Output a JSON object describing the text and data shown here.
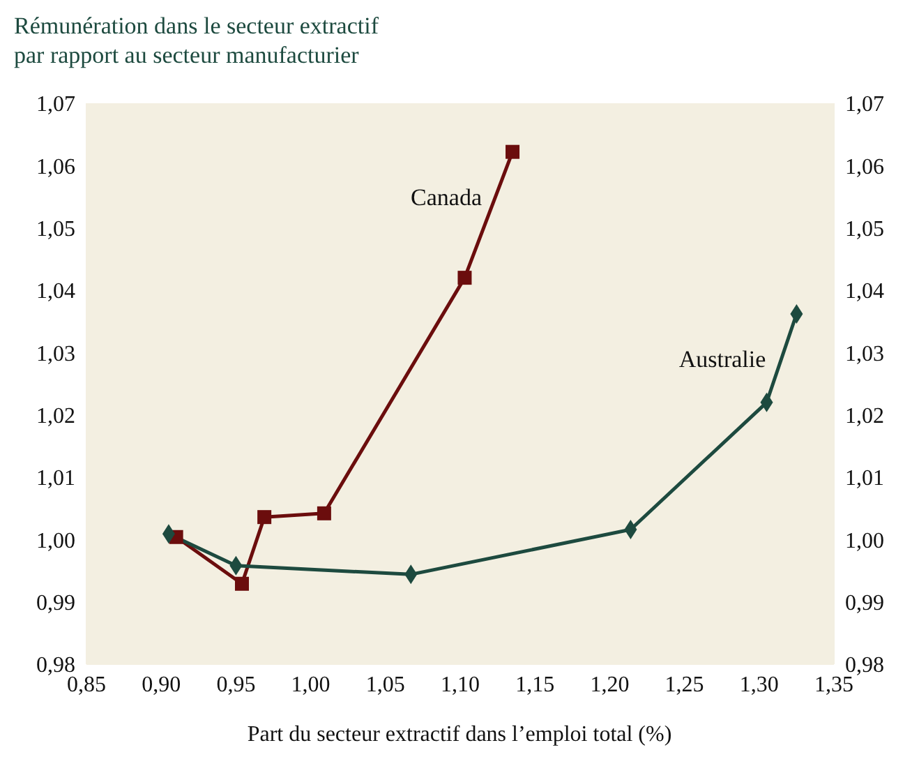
{
  "chart_data": {
    "type": "line",
    "title": "Rémunération dans le secteur extractif\npar rapport au secteur manufacturier",
    "xlabel": "Part du secteur extractif dans l’emploi total (%)",
    "series": [
      {
        "name": "Canada",
        "color": "#6b0d0d",
        "marker": "square",
        "x": [
          0.91,
          0.954,
          0.969,
          1.009,
          1.103,
          1.135
        ],
        "values": [
          1.0004,
          0.9929,
          1.0036,
          1.0042,
          1.042,
          1.0622
        ]
      },
      {
        "name": "Australie",
        "color": "#1d4a3f",
        "marker": "diamond",
        "x": [
          0.905,
          0.95,
          1.067,
          1.214,
          1.305,
          1.325
        ],
        "values": [
          1.0009,
          0.9958,
          0.9944,
          1.0016,
          1.022,
          1.0362
        ]
      }
    ],
    "xlim": [
      0.85,
      1.35
    ],
    "xticks": [
      {
        "value": 0.85,
        "label": "0,85"
      },
      {
        "value": 0.9,
        "label": "0,90"
      },
      {
        "value": 0.95,
        "label": "0,95"
      },
      {
        "value": 1.0,
        "label": "1,00"
      },
      {
        "value": 1.05,
        "label": "1,05"
      },
      {
        "value": 1.1,
        "label": "1,10"
      },
      {
        "value": 1.15,
        "label": "1,15"
      },
      {
        "value": 1.2,
        "label": "1,20"
      },
      {
        "value": 1.25,
        "label": "1,25"
      },
      {
        "value": 1.3,
        "label": "1,30"
      },
      {
        "value": 1.35,
        "label": "1,35"
      }
    ],
    "ylim": [
      0.98,
      1.07
    ],
    "yticks": [
      {
        "value": 0.98,
        "label": "0,98"
      },
      {
        "value": 0.99,
        "label": "0,99"
      },
      {
        "value": 1.0,
        "label": "1,00"
      },
      {
        "value": 1.01,
        "label": "1,01"
      },
      {
        "value": 1.02,
        "label": "1,02"
      },
      {
        "value": 1.03,
        "label": "1,03"
      },
      {
        "value": 1.04,
        "label": "1,04"
      },
      {
        "value": 1.05,
        "label": "1,05"
      },
      {
        "value": 1.06,
        "label": "1,06"
      },
      {
        "value": 1.07,
        "label": "1,07"
      }
    ],
    "y2lim": [
      0.98,
      1.07
    ],
    "y2ticks": [
      {
        "value": 0.98,
        "label": "0,98"
      },
      {
        "value": 0.99,
        "label": "0,99"
      },
      {
        "value": 1.0,
        "label": "1,00"
      },
      {
        "value": 1.01,
        "label": "1,01"
      },
      {
        "value": 1.02,
        "label": "1,02"
      },
      {
        "value": 1.03,
        "label": "1,03"
      },
      {
        "value": 1.04,
        "label": "1,04"
      },
      {
        "value": 1.05,
        "label": "1,05"
      },
      {
        "value": 1.06,
        "label": "1,06"
      },
      {
        "value": 1.07,
        "label": "1,07"
      }
    ],
    "legend": false,
    "line_style": "solid"
  }
}
